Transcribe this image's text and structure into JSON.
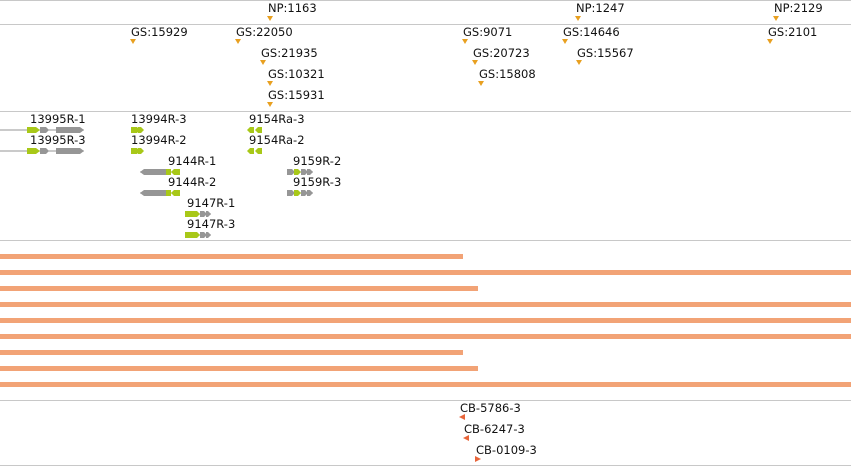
{
  "colors": {
    "marker": "#e8a020",
    "gene_green": "#a8c818",
    "gene_gray": "#969696",
    "alignment_bar": "#f2a376",
    "cb_marker": "#e8653a",
    "separator": "#c8c8c8"
  },
  "markers": [
    {
      "label": "NP:1163"
    },
    {
      "label": "NP:1247"
    },
    {
      "label": "NP:2129"
    },
    {
      "label": "GS:15929"
    },
    {
      "label": "GS:22050"
    },
    {
      "label": "GS:21935"
    },
    {
      "label": "GS:10321"
    },
    {
      "label": "GS:15931"
    },
    {
      "label": "GS:9071"
    },
    {
      "label": "GS:20723"
    },
    {
      "label": "GS:15808"
    },
    {
      "label": "GS:14646"
    },
    {
      "label": "GS:15567"
    },
    {
      "label": "GS:2101"
    }
  ],
  "genes": [
    {
      "label": "13995R-1"
    },
    {
      "label": "13995R-3"
    },
    {
      "label": "13994R-3"
    },
    {
      "label": "13994R-2"
    },
    {
      "label": "9154Ra-3"
    },
    {
      "label": "9154Ra-2"
    },
    {
      "label": "9144R-1"
    },
    {
      "label": "9144R-2"
    },
    {
      "label": "9159R-2"
    },
    {
      "label": "9159R-3"
    },
    {
      "label": "9147R-1"
    },
    {
      "label": "9147R-3"
    }
  ],
  "clones": [
    {
      "label": "CB-5786-3",
      "direction": "reverse"
    },
    {
      "label": "CB-6247-3",
      "direction": "reverse"
    },
    {
      "label": "CB-0109-3",
      "direction": "forward"
    }
  ]
}
